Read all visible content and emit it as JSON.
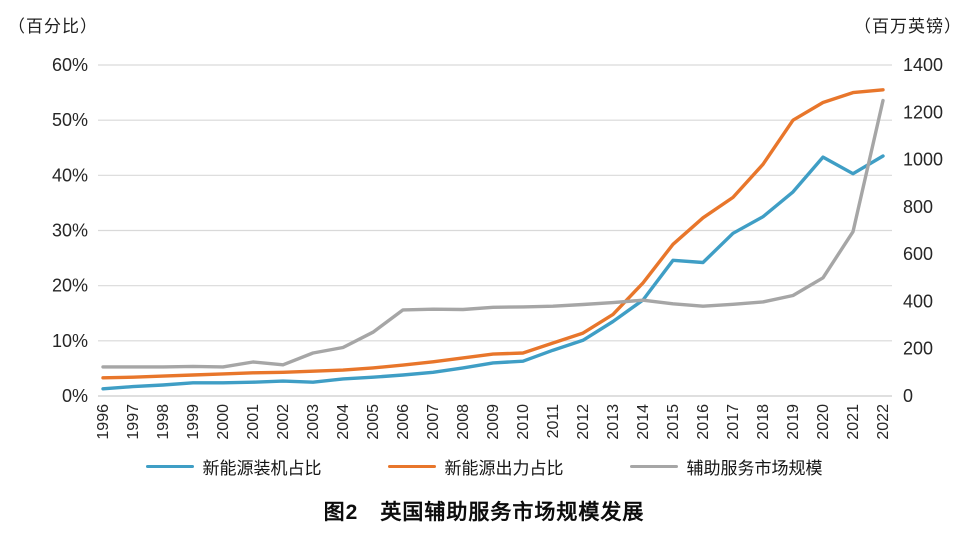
{
  "caption": "图2　英国辅助服务市场规模发展",
  "chart_data": {
    "type": "line",
    "title": "图2 英国辅助服务市场规模发展",
    "grid": true,
    "legend_position": "bottom",
    "x": [
      "1996",
      "1997",
      "1998",
      "1999",
      "2000",
      "2001",
      "2002",
      "2003",
      "2004",
      "2005",
      "2006",
      "2007",
      "2008",
      "2009",
      "2010",
      "2011",
      "2012",
      "2013",
      "2014",
      "2015",
      "2016",
      "2017",
      "2018",
      "2019",
      "2020",
      "2021",
      "2022"
    ],
    "left_axis": {
      "unit": "（百分比）",
      "min": 0,
      "max": 60,
      "ticks": [
        "0%",
        "10%",
        "20%",
        "30%",
        "40%",
        "50%",
        "60%"
      ]
    },
    "right_axis": {
      "unit": "（百万英镑）",
      "min": 0,
      "max": 1400,
      "ticks": [
        "0",
        "200",
        "400",
        "600",
        "800",
        "1000",
        "1200",
        "1400"
      ]
    },
    "series": [
      {
        "id": "installed-capacity-share",
        "name": "新能源装机占比",
        "axis": "left",
        "color": "#3f9ec5",
        "values": [
          1.3,
          1.7,
          2.0,
          2.4,
          2.4,
          2.5,
          2.7,
          2.5,
          3.1,
          3.4,
          3.8,
          4.3,
          5.1,
          6.0,
          6.3,
          8.3,
          10.1,
          13.5,
          17.4,
          24.6,
          24.2,
          29.5,
          32.5,
          37.0,
          43.3,
          40.3,
          43.5
        ]
      },
      {
        "id": "output-share",
        "name": "新能源出力占比",
        "axis": "left",
        "color": "#e8762b",
        "values": [
          3.3,
          3.4,
          3.6,
          3.8,
          4.0,
          4.2,
          4.3,
          4.5,
          4.7,
          5.1,
          5.6,
          6.2,
          6.9,
          7.6,
          7.8,
          9.6,
          11.4,
          14.8,
          20.5,
          27.5,
          32.3,
          36.0,
          42.0,
          50.0,
          53.2,
          55.0,
          55.5
        ]
      },
      {
        "id": "ancillary-market-size",
        "name": "辅助服务市场规模",
        "axis": "right",
        "color": "#a6a6a6",
        "values": [
          123,
          123,
          123,
          125,
          123,
          144,
          132,
          182,
          205,
          270,
          364,
          367,
          366,
          375,
          377,
          380,
          387,
          395,
          405,
          390,
          380,
          388,
          398,
          425,
          500,
          695,
          1250
        ]
      }
    ]
  },
  "colors": {
    "gridline": "#d9d9d9",
    "axis_line": "#cccccc",
    "tick_text": "#262626"
  }
}
